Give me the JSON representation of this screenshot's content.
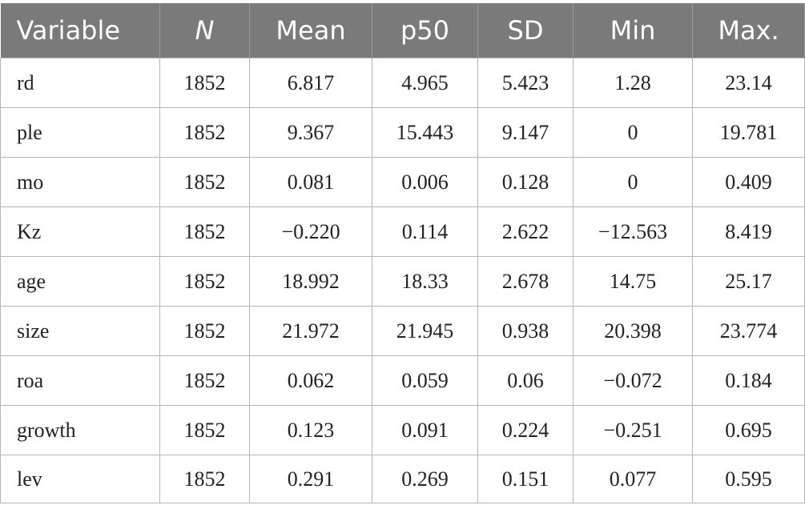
{
  "table": {
    "headers": [
      "Variable",
      "N",
      "Mean",
      "p50",
      "SD",
      "Min",
      "Max."
    ],
    "rows": [
      [
        "rd",
        "1852",
        "6.817",
        "4.965",
        "5.423",
        "1.28",
        "23.14"
      ],
      [
        "ple",
        "1852",
        "9.367",
        "15.443",
        "9.147",
        "0",
        "19.781"
      ],
      [
        "mo",
        "1852",
        "0.081",
        "0.006",
        "0.128",
        "0",
        "0.409"
      ],
      [
        "Kz",
        "1852",
        "−0.220",
        "0.114",
        "2.622",
        "−12.563",
        "8.419"
      ],
      [
        "age",
        "1852",
        "18.992",
        "18.33",
        "2.678",
        "14.75",
        "25.17"
      ],
      [
        "size",
        "1852",
        "21.972",
        "21.945",
        "0.938",
        "20.398",
        "23.774"
      ],
      [
        "roa",
        "1852",
        "0.062",
        "0.059",
        "0.06",
        "−0.072",
        "0.184"
      ],
      [
        "growth",
        "1852",
        "0.123",
        "0.091",
        "0.224",
        "−0.251",
        "0.695"
      ],
      [
        "lev",
        "1852",
        "0.291",
        "0.269",
        "0.151",
        "0.077",
        "0.595"
      ]
    ]
  }
}
